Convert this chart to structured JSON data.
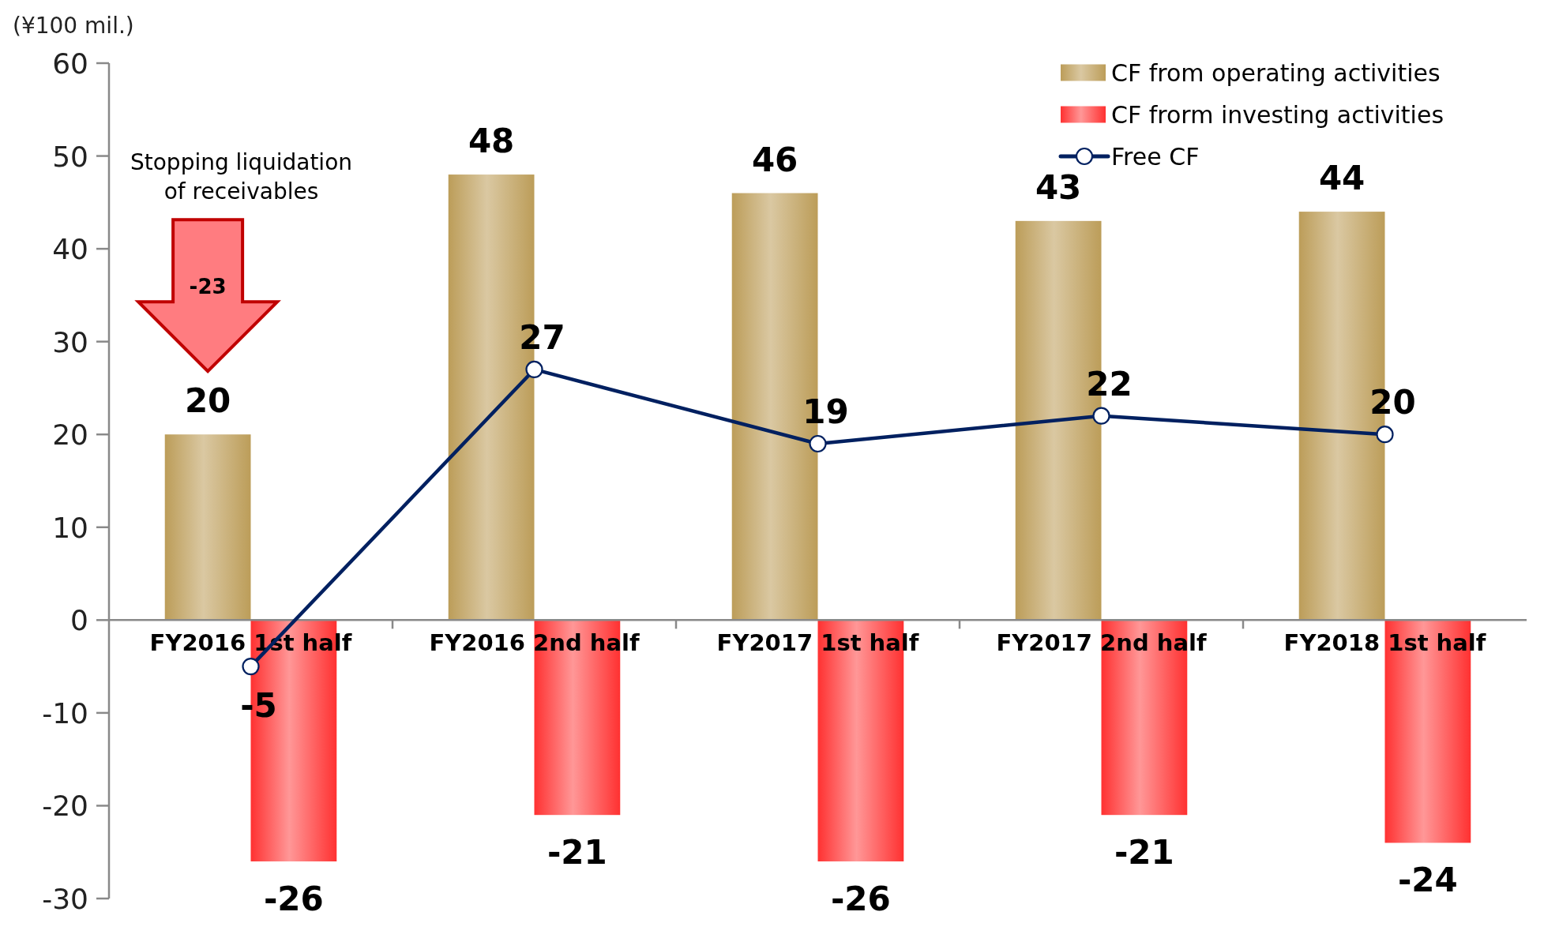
{
  "chart_data": {
    "type": "bar",
    "ylabel": "(¥100 mil.)",
    "categories": [
      "FY2016 1st half",
      "FY2016 2nd half",
      "FY2017 1st half",
      "FY2017 2nd half",
      "FY2018 1st half"
    ],
    "series": [
      {
        "name": "CF from operating activities",
        "color": "#c8ae76",
        "values": [
          20,
          48,
          46,
          43,
          44
        ]
      },
      {
        "name": "CF frorm investing activities",
        "color": "#ff5a5a",
        "values": [
          -26,
          -21,
          -26,
          -21,
          -24
        ]
      },
      {
        "name": "Free CF",
        "type": "line",
        "color": "#002060",
        "values": [
          -5,
          27,
          19,
          22,
          20
        ]
      }
    ],
    "ylim": [
      -30,
      60
    ],
    "yticks": [
      -30,
      -20,
      -10,
      0,
      10,
      20,
      30,
      40,
      50,
      60
    ],
    "legend": "top right",
    "marker": "circle",
    "line_style": "solid",
    "data_labels": true,
    "annotations": [
      "Stopping liquidation of receivables",
      "-23"
    ]
  }
}
